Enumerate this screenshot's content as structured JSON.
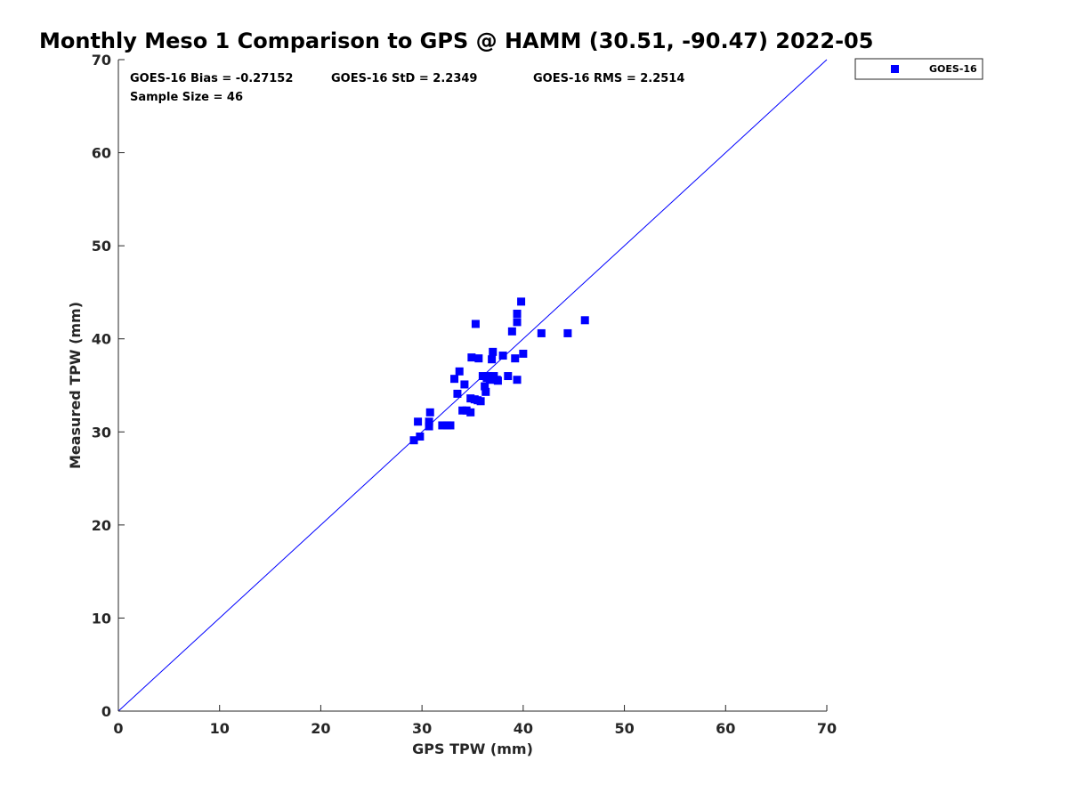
{
  "chart_data": {
    "type": "scatter",
    "title": "Monthly Meso 1 Comparison to GPS @ HAMM (30.51, -90.47) 2022-05",
    "xlabel": "GPS TPW (mm)",
    "ylabel": "Measured TPW (mm)",
    "xlim": [
      0,
      70
    ],
    "ylim": [
      0,
      70
    ],
    "xticks": [
      0,
      10,
      20,
      30,
      40,
      50,
      60,
      70
    ],
    "yticks": [
      0,
      10,
      20,
      30,
      40,
      50,
      60,
      70
    ],
    "grid": false,
    "legend_position": "top-right-outside",
    "reference_line": {
      "from": [
        0,
        0
      ],
      "to": [
        70,
        70
      ],
      "color": "#0000ff"
    },
    "stats": {
      "bias": "GOES-16 Bias = -0.27152",
      "std": "GOES-16 StD = 2.2349",
      "rms": "GOES-16 RMS = 2.2514",
      "sample_size": "Sample Size = 46"
    },
    "series": [
      {
        "name": "GOES-16",
        "color": "#0000ff",
        "marker": "square",
        "points": [
          [
            29.2,
            29.1
          ],
          [
            29.6,
            31.1
          ],
          [
            29.8,
            29.5
          ],
          [
            30.7,
            30.6
          ],
          [
            30.7,
            31.1
          ],
          [
            30.8,
            32.1
          ],
          [
            32.0,
            30.7
          ],
          [
            32.5,
            30.7
          ],
          [
            32.8,
            30.7
          ],
          [
            33.2,
            35.7
          ],
          [
            33.5,
            34.1
          ],
          [
            33.7,
            36.5
          ],
          [
            34.0,
            32.3
          ],
          [
            34.2,
            35.1
          ],
          [
            34.4,
            32.3
          ],
          [
            34.8,
            33.6
          ],
          [
            34.8,
            32.1
          ],
          [
            34.9,
            38.0
          ],
          [
            35.2,
            33.5
          ],
          [
            35.3,
            41.6
          ],
          [
            35.6,
            37.9
          ],
          [
            35.8,
            33.3
          ],
          [
            36.0,
            36.0
          ],
          [
            36.2,
            34.9
          ],
          [
            36.3,
            34.3
          ],
          [
            36.5,
            36.0
          ],
          [
            36.7,
            35.6
          ],
          [
            36.9,
            37.8
          ],
          [
            37.0,
            38.6
          ],
          [
            37.1,
            36.0
          ],
          [
            37.4,
            35.6
          ],
          [
            37.5,
            35.5
          ],
          [
            38.0,
            38.2
          ],
          [
            38.5,
            36.0
          ],
          [
            38.9,
            40.8
          ],
          [
            39.2,
            37.9
          ],
          [
            39.4,
            35.6
          ],
          [
            39.4,
            41.8
          ],
          [
            39.4,
            42.7
          ],
          [
            39.8,
            44.0
          ],
          [
            40.0,
            38.4
          ],
          [
            41.8,
            40.6
          ],
          [
            44.4,
            40.6
          ],
          [
            46.1,
            42.0
          ],
          [
            36.4,
            35.8
          ],
          [
            35.5,
            33.4
          ]
        ]
      }
    ]
  }
}
